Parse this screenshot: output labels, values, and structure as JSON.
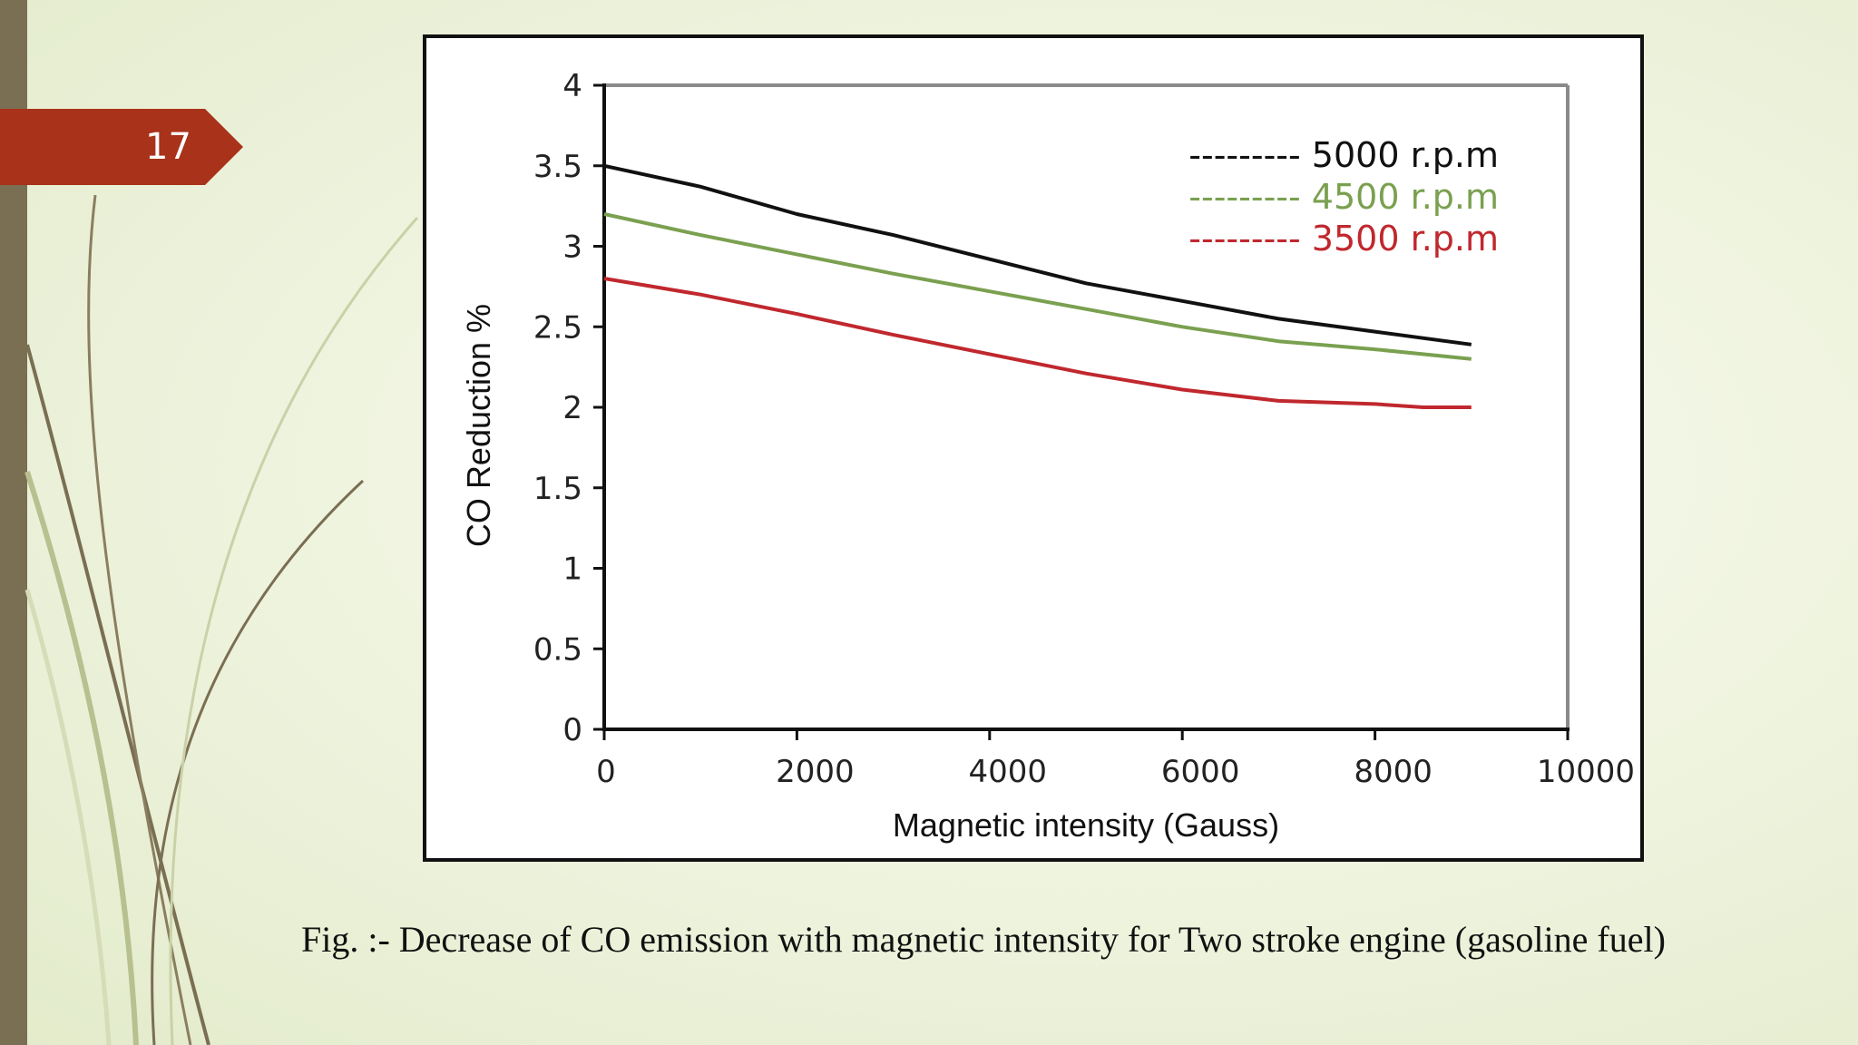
{
  "slide": {
    "number": "17"
  },
  "caption": "Fig. :- Decrease of CO emission with magnetic intensity for Two stroke engine (gasoline fuel)",
  "colors": {
    "accent": "#a8321a",
    "sidebar": "#7a6e53",
    "series_black": "#111111",
    "series_green": "#7aa050",
    "series_red": "#c0282e"
  },
  "chart_data": {
    "type": "line",
    "xlabel": "Magnetic intensity (Gauss)",
    "ylabel": "CO Reduction %",
    "xlim": [
      0,
      10000
    ],
    "ylim": [
      0,
      4
    ],
    "xticks": [
      "0",
      "2000",
      "4000",
      "6000",
      "8000",
      "10000"
    ],
    "yticks": [
      "0",
      "0.5",
      "1",
      "1.5",
      "2",
      "2.5",
      "3",
      "3.5",
      "4"
    ],
    "grid": false,
    "legend_position": "top-right",
    "series": [
      {
        "name": "5000 r.p.m",
        "legend_label": "--------- 5000 r.p.m",
        "color": "#111111",
        "x": [
          0,
          1000,
          2000,
          3000,
          4000,
          5000,
          6000,
          7000,
          8000,
          9000
        ],
        "y": [
          3.5,
          3.37,
          3.2,
          3.07,
          2.92,
          2.77,
          2.66,
          2.55,
          2.47,
          2.39
        ]
      },
      {
        "name": "4500 r.p.m",
        "legend_label": "--------- 4500 r.p.m",
        "color": "#7aa050",
        "x": [
          0,
          1000,
          2000,
          3000,
          4000,
          5000,
          6000,
          7000,
          8000,
          9000
        ],
        "y": [
          3.2,
          3.07,
          2.95,
          2.83,
          2.72,
          2.61,
          2.5,
          2.41,
          2.36,
          2.3
        ]
      },
      {
        "name": "3500 r.p.m",
        "legend_label": "--------- 3500 r.p.m",
        "color": "#c0282e",
        "x": [
          0,
          1000,
          2000,
          3000,
          4000,
          5000,
          6000,
          7000,
          8000,
          8500,
          9000
        ],
        "y": [
          2.8,
          2.7,
          2.58,
          2.45,
          2.33,
          2.21,
          2.11,
          2.04,
          2.02,
          2.0,
          2.0
        ]
      }
    ]
  }
}
